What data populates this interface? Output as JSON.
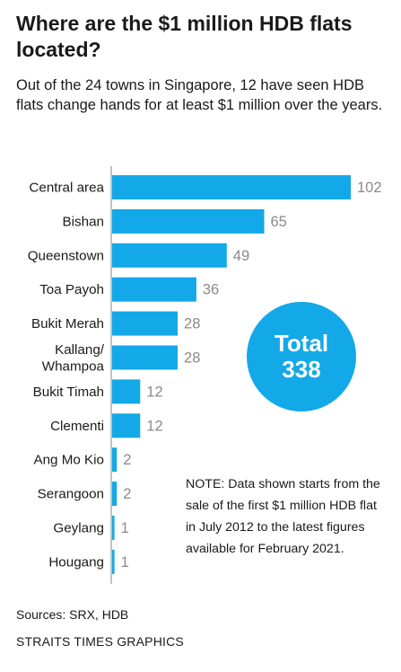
{
  "header": {
    "title": "Where are the $1 million HDB flats located?",
    "subtitle": "Out of the 24 towns in Singapore, 12 have seen HDB flats change hands for at least $1 million over the years."
  },
  "total": {
    "label": "Total",
    "value": "338"
  },
  "note": {
    "lines": [
      "NOTE: Data shown starts from the",
      "sale of the first $1 million HDB flat",
      "in July 2012 to the latest figures",
      "available for February 2021."
    ]
  },
  "footer": {
    "sources": "Sources: SRX, HDB",
    "credit": "STRAITS TIMES GRAPHICS"
  },
  "colors": {
    "bar": "#13a8e8",
    "value_label": "#8a8a8a",
    "axis": "#9a9a9a"
  },
  "chart_data": {
    "type": "bar",
    "orientation": "horizontal",
    "categories": [
      [
        "Central area"
      ],
      [
        "Bishan"
      ],
      [
        "Queenstown"
      ],
      [
        "Toa Payoh"
      ],
      [
        "Bukit Merah"
      ],
      [
        "Kallang/",
        "Whampoa"
      ],
      [
        "Bukit Timah"
      ],
      [
        "Clementi"
      ],
      [
        "Ang Mo Kio"
      ],
      [
        "Serangoon"
      ],
      [
        "Geylang"
      ],
      [
        "Hougang"
      ]
    ],
    "values": [
      102,
      65,
      49,
      36,
      28,
      28,
      12,
      12,
      2,
      2,
      1,
      1
    ],
    "xlim": [
      0,
      102
    ],
    "grid": false,
    "legend": "none"
  }
}
